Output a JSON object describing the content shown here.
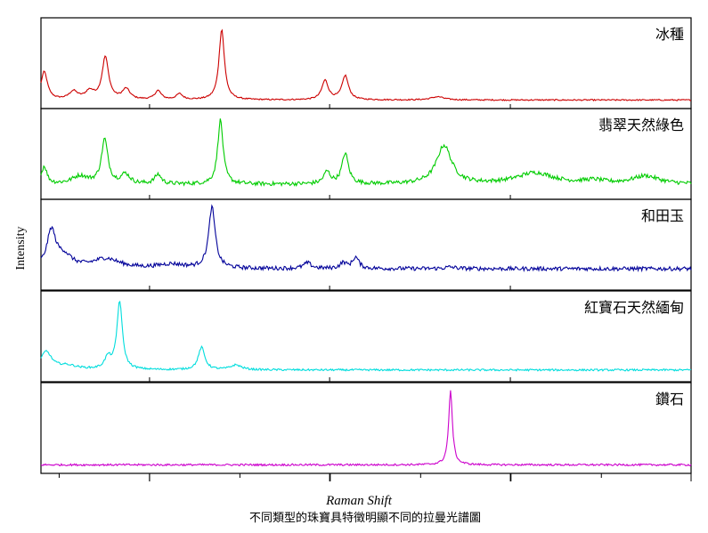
{
  "chart_data": {
    "type": "line",
    "title": "",
    "xlabel": "Raman Shift",
    "ylabel": "Intensity",
    "caption": "不同類型的珠寶具特徵明顯不同的拉曼光譜圖",
    "x_range": [
      0,
      1
    ],
    "y_range": [
      0,
      1
    ],
    "grid": false,
    "legend": "inline labels at top-right of each panel",
    "series": [
      {
        "name": "冰種",
        "color": "#cc0000",
        "baseline": 0.04,
        "noise": 0.008,
        "peaks": [
          {
            "x": 0.005,
            "h": 0.35,
            "w": 0.006
          },
          {
            "x": 0.05,
            "h": 0.1,
            "w": 0.008
          },
          {
            "x": 0.075,
            "h": 0.1,
            "w": 0.008
          },
          {
            "x": 0.099,
            "h": 0.53,
            "w": 0.006
          },
          {
            "x": 0.131,
            "h": 0.13,
            "w": 0.007
          },
          {
            "x": 0.18,
            "h": 0.11,
            "w": 0.006
          },
          {
            "x": 0.213,
            "h": 0.07,
            "w": 0.006
          },
          {
            "x": 0.278,
            "h": 0.88,
            "w": 0.005
          },
          {
            "x": 0.437,
            "h": 0.24,
            "w": 0.006
          },
          {
            "x": 0.468,
            "h": 0.3,
            "w": 0.006
          },
          {
            "x": 0.61,
            "h": 0.04,
            "w": 0.012
          }
        ]
      },
      {
        "name": "翡翠天然綠色",
        "color": "#00cc00",
        "baseline": 0.12,
        "noise": 0.025,
        "peaks": [
          {
            "x": 0.005,
            "h": 0.22,
            "w": 0.005
          },
          {
            "x": 0.06,
            "h": 0.1,
            "w": 0.015
          },
          {
            "x": 0.098,
            "h": 0.55,
            "w": 0.006
          },
          {
            "x": 0.13,
            "h": 0.12,
            "w": 0.008
          },
          {
            "x": 0.18,
            "h": 0.12,
            "w": 0.006
          },
          {
            "x": 0.276,
            "h": 0.8,
            "w": 0.005
          },
          {
            "x": 0.44,
            "h": 0.15,
            "w": 0.006
          },
          {
            "x": 0.468,
            "h": 0.38,
            "w": 0.006
          },
          {
            "x": 0.62,
            "h": 0.48,
            "w": 0.014
          },
          {
            "x": 0.76,
            "h": 0.14,
            "w": 0.035
          },
          {
            "x": 0.85,
            "h": 0.04,
            "w": 0.02
          },
          {
            "x": 0.93,
            "h": 0.1,
            "w": 0.025
          }
        ]
      },
      {
        "name": "和田玉",
        "color": "#000099",
        "baseline": 0.2,
        "noise": 0.025,
        "peaks": [
          {
            "x": 0.016,
            "h": 0.45,
            "w": 0.008
          },
          {
            "x": 0.035,
            "h": 0.15,
            "w": 0.015
          },
          {
            "x": 0.1,
            "h": 0.12,
            "w": 0.025
          },
          {
            "x": 0.2,
            "h": 0.05,
            "w": 0.025
          },
          {
            "x": 0.263,
            "h": 0.76,
            "w": 0.006
          },
          {
            "x": 0.41,
            "h": 0.07,
            "w": 0.007
          },
          {
            "x": 0.465,
            "h": 0.07,
            "w": 0.006
          },
          {
            "x": 0.484,
            "h": 0.14,
            "w": 0.006
          },
          {
            "x": 0.63,
            "h": 0.02,
            "w": 0.01
          }
        ]
      },
      {
        "name": "紅寶石天然緬甸",
        "color": "#00dddd",
        "baseline": 0.08,
        "noise": 0.012,
        "peaks": [
          {
            "x": 0.008,
            "h": 0.22,
            "w": 0.01
          },
          {
            "x": 0.04,
            "h": 0.05,
            "w": 0.02
          },
          {
            "x": 0.103,
            "h": 0.14,
            "w": 0.006
          },
          {
            "x": 0.121,
            "h": 0.85,
            "w": 0.005
          },
          {
            "x": 0.247,
            "h": 0.28,
            "w": 0.006
          },
          {
            "x": 0.3,
            "h": 0.06,
            "w": 0.01
          }
        ]
      },
      {
        "name": "鑽石",
        "color": "#cc00cc",
        "baseline": 0.04,
        "noise": 0.012,
        "peaks": [
          {
            "x": 0.63,
            "h": 0.92,
            "w": 0.0035
          }
        ]
      }
    ]
  }
}
